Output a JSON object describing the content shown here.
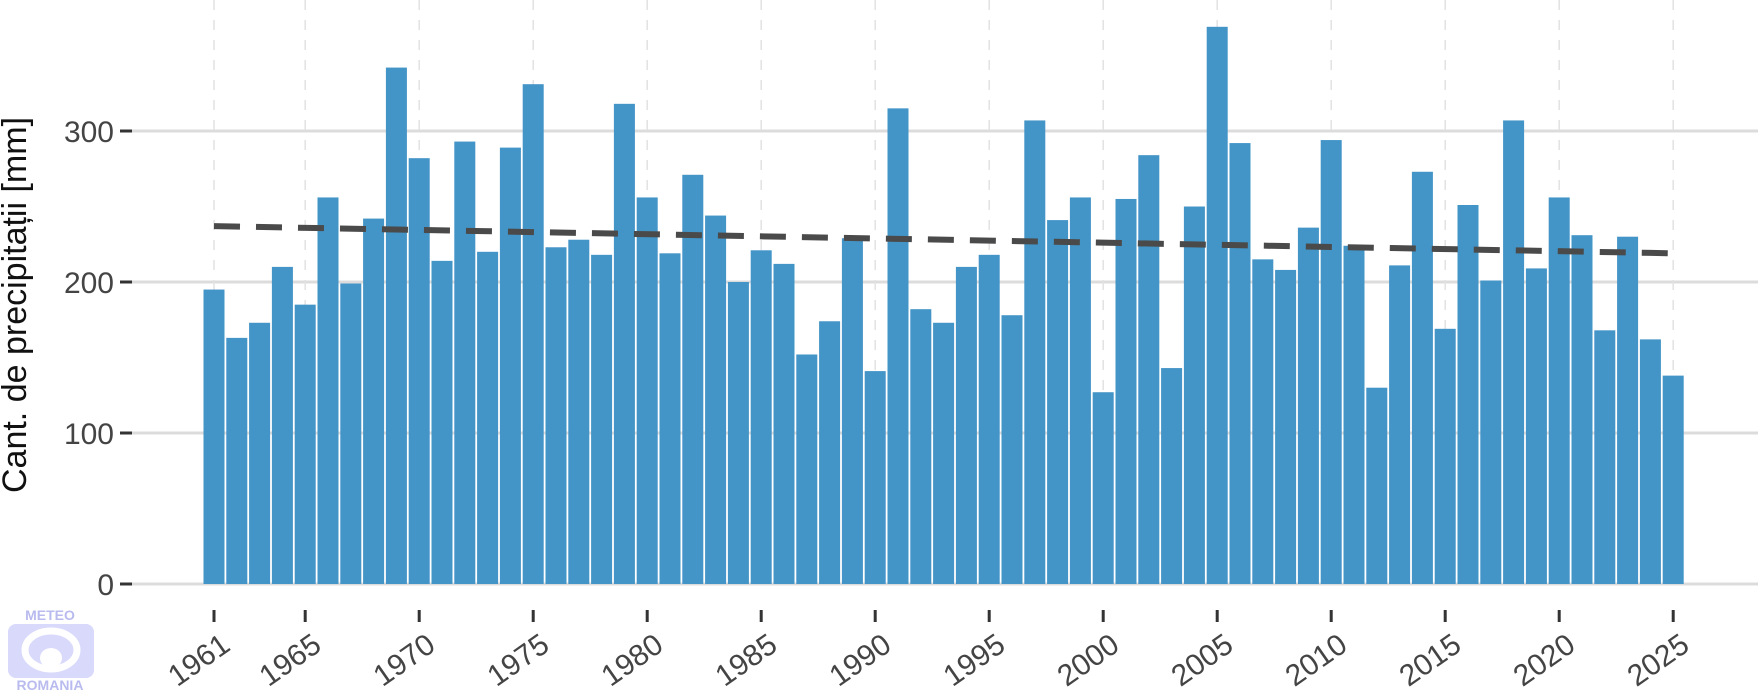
{
  "chart_data": {
    "type": "bar",
    "ylabel": "Cant. de precipitații [mm]",
    "xlabel": "",
    "title": "",
    "ylim": [
      0,
      370
    ],
    "y_ticks": [
      0,
      100,
      200,
      300
    ],
    "x_ticks": [
      1961,
      1965,
      1970,
      1975,
      1980,
      1985,
      1990,
      1995,
      2000,
      2005,
      2010,
      2015,
      2020,
      2025
    ],
    "grid": true,
    "x": [
      1961,
      1962,
      1963,
      1964,
      1965,
      1966,
      1967,
      1968,
      1969,
      1970,
      1971,
      1972,
      1973,
      1974,
      1975,
      1976,
      1977,
      1978,
      1979,
      1980,
      1981,
      1982,
      1983,
      1984,
      1985,
      1986,
      1987,
      1988,
      1989,
      1990,
      1991,
      1992,
      1993,
      1994,
      1995,
      1996,
      1997,
      1998,
      1999,
      2000,
      2001,
      2002,
      2003,
      2004,
      2005,
      2006,
      2007,
      2008,
      2009,
      2010,
      2011,
      2012,
      2013,
      2014,
      2015,
      2016,
      2017,
      2018,
      2019,
      2020,
      2021,
      2022,
      2023,
      2024,
      2025
    ],
    "values": [
      195,
      163,
      173,
      210,
      185,
      256,
      199,
      242,
      342,
      282,
      214,
      293,
      220,
      289,
      331,
      223,
      228,
      218,
      318,
      256,
      219,
      271,
      244,
      200,
      221,
      212,
      152,
      174,
      229,
      141,
      315,
      182,
      173,
      210,
      218,
      178,
      307,
      241,
      256,
      127,
      255,
      284,
      143,
      250,
      369,
      292,
      215,
      208,
      236,
      294,
      224,
      130,
      211,
      273,
      169,
      251,
      201,
      307,
      209,
      256,
      231,
      168,
      230,
      162,
      138
    ],
    "trend": {
      "start": 237,
      "end": 219,
      "style": "dashed"
    },
    "colors": {
      "bar": "#4394c7",
      "trend": "#4a4a4a",
      "grid": "#dcdcdc"
    }
  },
  "logo": {
    "line1": "METEO",
    "line2": "ROMANIA",
    "color": "#b9bbef"
  }
}
